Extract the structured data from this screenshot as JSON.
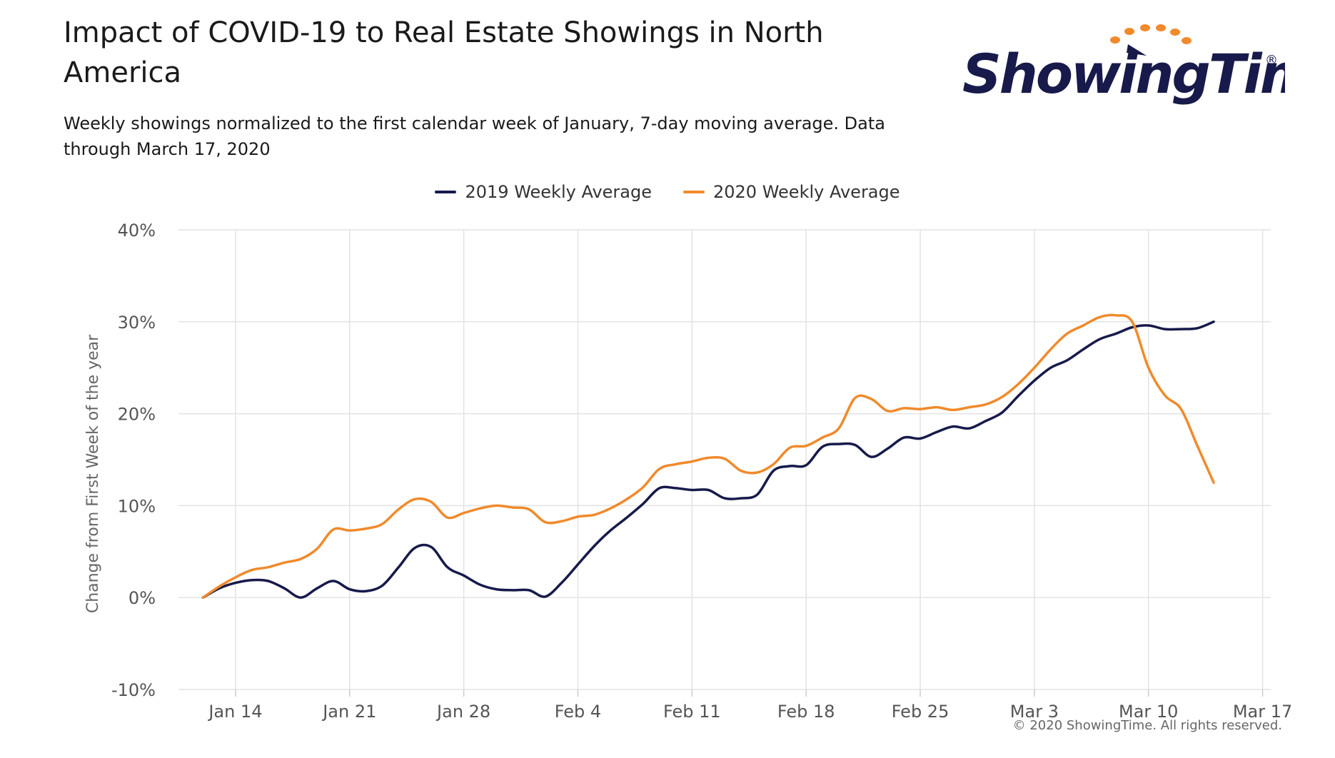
{
  "title": "Impact of COVID-19 to Real Estate Showings in North America",
  "subtitle": "Weekly showings normalized to the first calendar week of January, 7-day moving average. Data through March 17, 2020",
  "logo": {
    "text": "ShowingTime",
    "registered": "®"
  },
  "copyright": "© 2020 ShowingTime. All rights reserved.",
  "colors": {
    "series_2019": "#171a4a",
    "series_2020": "#f08a2b",
    "grid": "#e3e3e3",
    "axis_text": "#555555",
    "logo_dots": "#f08a2b",
    "logo_text": "#171a4a"
  },
  "chart_data": {
    "type": "line",
    "title": "Impact of COVID-19 to Real Estate Showings in North America",
    "ylabel": "Change from First Week of the year",
    "ylim": [
      -10,
      40
    ],
    "y_ticks": [
      -10,
      0,
      10,
      20,
      30,
      40
    ],
    "y_tick_labels": [
      "-10%",
      "0%",
      "10%",
      "20%",
      "30%",
      "40%"
    ],
    "x_range_days": [
      -3.5,
      63.5
    ],
    "x_ticks": [
      0,
      7,
      14,
      21,
      28,
      35,
      42,
      49,
      56,
      63
    ],
    "x_tick_labels": [
      "Jan 14",
      "Jan 21",
      "Jan 28",
      "Feb 4",
      "Feb 11",
      "Feb 18",
      "Feb 25",
      "Mar 3",
      "Mar 10",
      "Mar 17"
    ],
    "x_axis_note": "x values are days after Jan 14, 2020",
    "grid": true,
    "legend_position": "top-center",
    "series": [
      {
        "name": "2019 Weekly Average",
        "color": "#171a4a",
        "points": [
          [
            -2,
            0
          ],
          [
            -1,
            1
          ],
          [
            0,
            1.6
          ],
          [
            1,
            1.9
          ],
          [
            2,
            1.8
          ],
          [
            3,
            1
          ],
          [
            4,
            0
          ],
          [
            5,
            1
          ],
          [
            6,
            1.8
          ],
          [
            7,
            0.9
          ],
          [
            8,
            0.7
          ],
          [
            9,
            1.3
          ],
          [
            10,
            3.3
          ],
          [
            11,
            5.4
          ],
          [
            12,
            5.5
          ],
          [
            13,
            3.3
          ],
          [
            14,
            2.4
          ],
          [
            15,
            1.4
          ],
          [
            16,
            0.9
          ],
          [
            17,
            0.8
          ],
          [
            18,
            0.8
          ],
          [
            19,
            0.1
          ],
          [
            20,
            1.6
          ],
          [
            21,
            3.6
          ],
          [
            22,
            5.6
          ],
          [
            23,
            7.3
          ],
          [
            24,
            8.7
          ],
          [
            25,
            10.2
          ],
          [
            26,
            11.9
          ],
          [
            27,
            11.9
          ],
          [
            28,
            11.7
          ],
          [
            29,
            11.7
          ],
          [
            30,
            10.8
          ],
          [
            31,
            10.8
          ],
          [
            32,
            11.2
          ],
          [
            33,
            13.8
          ],
          [
            34,
            14.3
          ],
          [
            35,
            14.4
          ],
          [
            36,
            16.4
          ],
          [
            37,
            16.7
          ],
          [
            38,
            16.6
          ],
          [
            39,
            15.3
          ],
          [
            40,
            16.2
          ],
          [
            41,
            17.4
          ],
          [
            42,
            17.3
          ],
          [
            43,
            18
          ],
          [
            44,
            18.6
          ],
          [
            45,
            18.4
          ],
          [
            46,
            19.2
          ],
          [
            47,
            20.1
          ],
          [
            48,
            21.9
          ],
          [
            49,
            23.6
          ],
          [
            50,
            25
          ],
          [
            51,
            25.8
          ],
          [
            52,
            27
          ],
          [
            53,
            28.1
          ],
          [
            54,
            28.7
          ],
          [
            55,
            29.4
          ],
          [
            56,
            29.6
          ],
          [
            57,
            29.2
          ],
          [
            58,
            29.2
          ],
          [
            59,
            29.3
          ],
          [
            60,
            30
          ]
        ]
      },
      {
        "name": "2020 Weekly Average",
        "color": "#f08a2b",
        "points": [
          [
            -2,
            0
          ],
          [
            -1,
            1.2
          ],
          [
            0,
            2.2
          ],
          [
            1,
            3
          ],
          [
            2,
            3.3
          ],
          [
            3,
            3.8
          ],
          [
            4,
            4.2
          ],
          [
            5,
            5.3
          ],
          [
            6,
            7.4
          ],
          [
            7,
            7.3
          ],
          [
            8,
            7.5
          ],
          [
            9,
            8
          ],
          [
            10,
            9.6
          ],
          [
            11,
            10.7
          ],
          [
            12,
            10.4
          ],
          [
            13,
            8.7
          ],
          [
            14,
            9.2
          ],
          [
            15,
            9.7
          ],
          [
            16,
            10
          ],
          [
            17,
            9.8
          ],
          [
            18,
            9.6
          ],
          [
            19,
            8.2
          ],
          [
            20,
            8.3
          ],
          [
            21,
            8.8
          ],
          [
            22,
            9
          ],
          [
            23,
            9.7
          ],
          [
            24,
            10.7
          ],
          [
            25,
            12
          ],
          [
            26,
            14
          ],
          [
            27,
            14.5
          ],
          [
            28,
            14.8
          ],
          [
            29,
            15.2
          ],
          [
            30,
            15.1
          ],
          [
            31,
            13.8
          ],
          [
            32,
            13.6
          ],
          [
            33,
            14.5
          ],
          [
            34,
            16.3
          ],
          [
            35,
            16.5
          ],
          [
            36,
            17.4
          ],
          [
            37,
            18.4
          ],
          [
            38,
            21.7
          ],
          [
            39,
            21.6
          ],
          [
            40,
            20.3
          ],
          [
            41,
            20.6
          ],
          [
            42,
            20.5
          ],
          [
            43,
            20.7
          ],
          [
            44,
            20.4
          ],
          [
            45,
            20.7
          ],
          [
            46,
            21
          ],
          [
            47,
            21.8
          ],
          [
            48,
            23.2
          ],
          [
            49,
            25
          ],
          [
            50,
            27
          ],
          [
            51,
            28.7
          ],
          [
            52,
            29.6
          ],
          [
            53,
            30.5
          ],
          [
            54,
            30.7
          ],
          [
            55,
            30
          ],
          [
            56,
            25
          ],
          [
            57,
            22
          ],
          [
            58,
            20.5
          ],
          [
            59,
            16.5
          ],
          [
            60,
            12.5
          ]
        ]
      }
    ]
  }
}
